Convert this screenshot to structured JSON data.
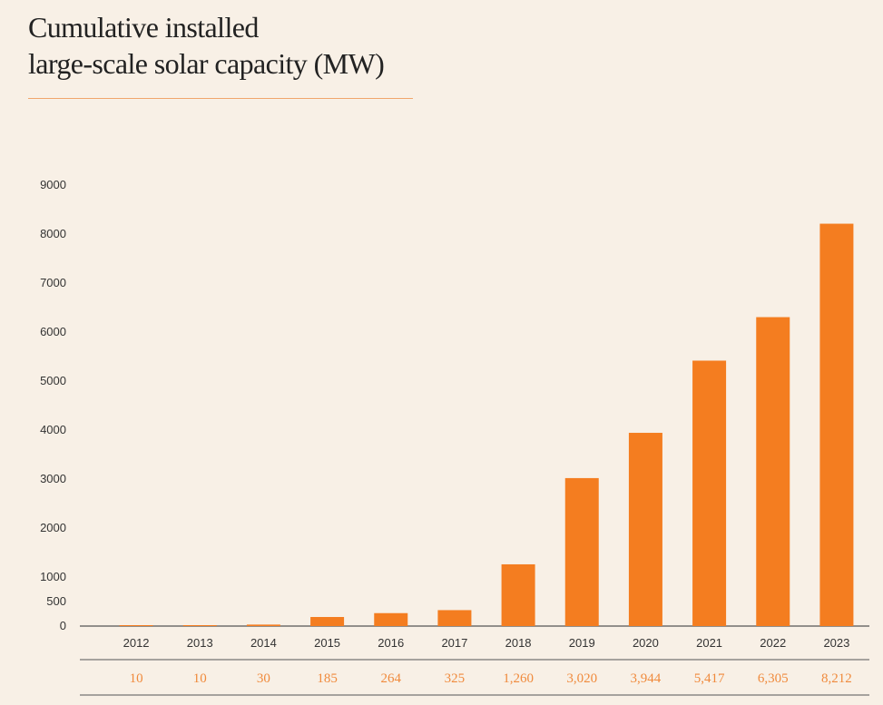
{
  "title_lines": [
    "Cumulative installed",
    "large-scale solar capacity (MW)"
  ],
  "colors": {
    "bar": "#f47d20",
    "accent_rule": "#f0a66c",
    "data_label": "#f08a3c",
    "background": "#f8f0e6"
  },
  "chart_data": {
    "type": "bar",
    "title": "Cumulative installed large-scale solar capacity (MW)",
    "categories": [
      "2012",
      "2013",
      "2014",
      "2015",
      "2016",
      "2017",
      "2018",
      "2019",
      "2020",
      "2021",
      "2022",
      "2023"
    ],
    "values": [
      10,
      10,
      30,
      185,
      264,
      325,
      1260,
      3020,
      3944,
      5417,
      6305,
      8212
    ],
    "value_labels": [
      "10",
      "10",
      "30",
      "185",
      "264",
      "325",
      "1,260",
      "3,020",
      "3,944",
      "5,417",
      "6,305",
      "8,212"
    ],
    "yticks": [
      0,
      500,
      1000,
      2000,
      3000,
      4000,
      5000,
      6000,
      7000,
      8000,
      9000
    ],
    "xlabel": "",
    "ylabel": "",
    "ylim": [
      0,
      9000
    ],
    "grid": false,
    "legend": "none"
  }
}
